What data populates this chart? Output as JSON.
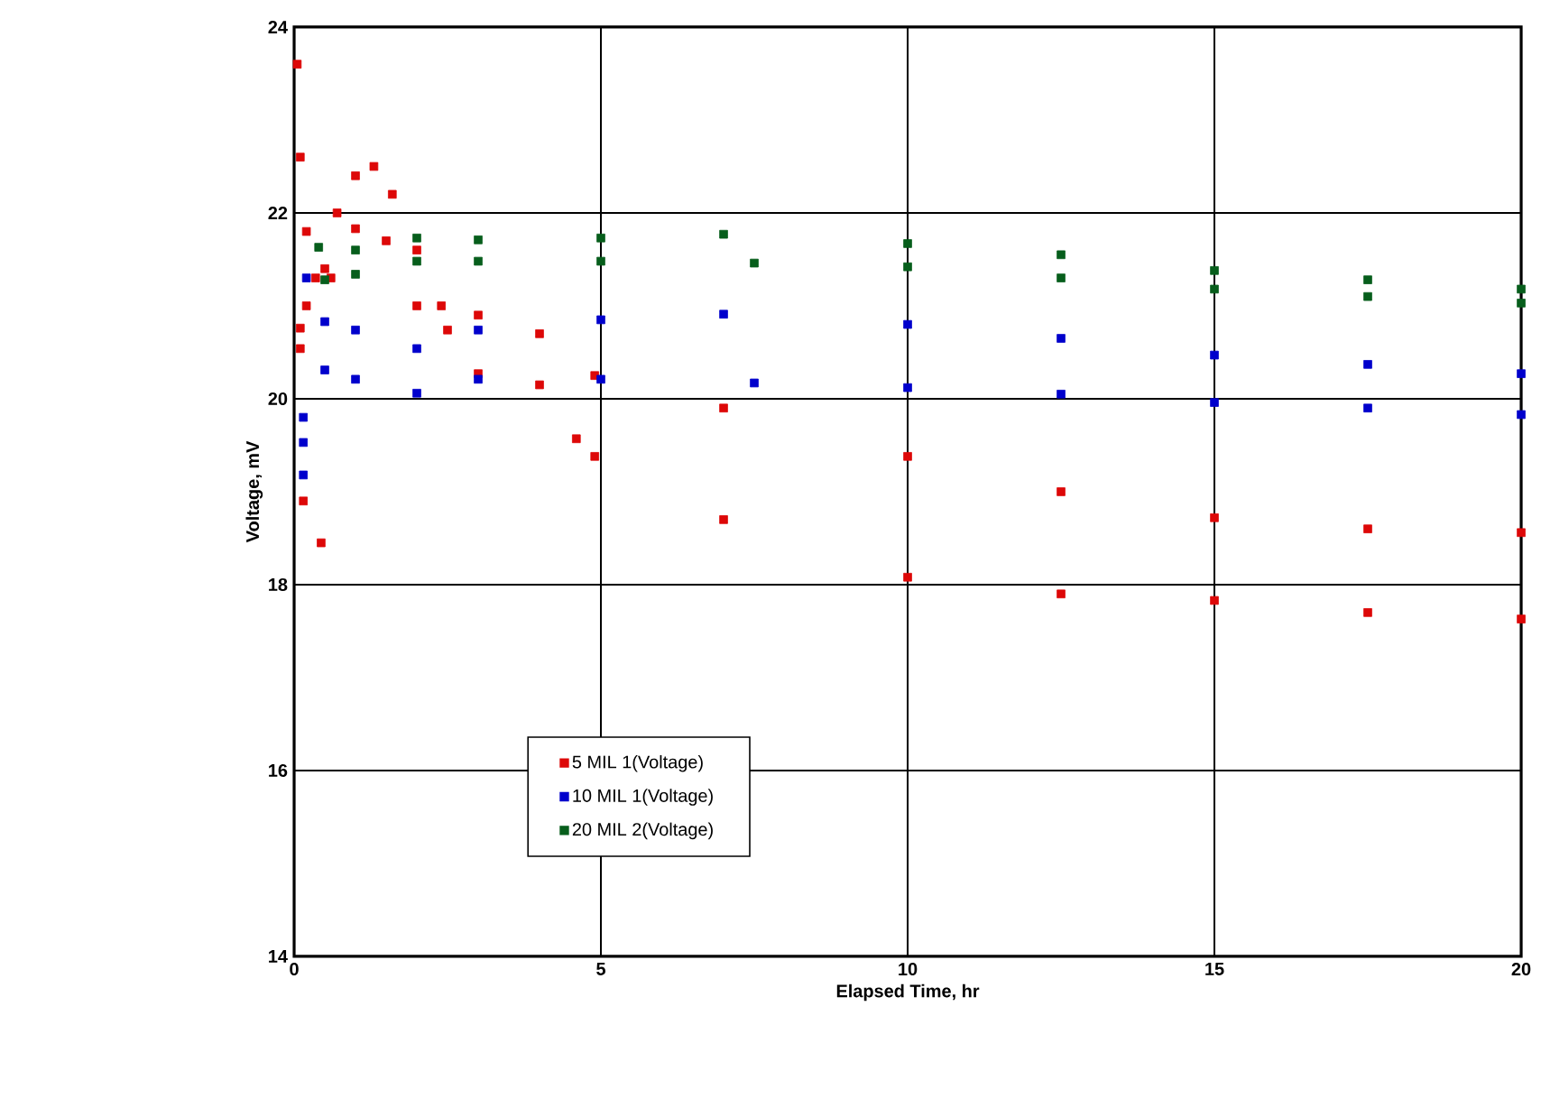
{
  "chart_data": {
    "type": "scatter",
    "xlabel": "Elapsed Time, hr",
    "ylabel": "Voltage, mV",
    "xlim": [
      0,
      20
    ],
    "ylim": [
      14,
      24
    ],
    "xticks": [
      0,
      5,
      10,
      15,
      20
    ],
    "yticks": [
      14,
      16,
      18,
      20,
      22,
      24
    ],
    "grid": true,
    "legend": "bottom left",
    "marker": "square",
    "series": [
      {
        "name": "5 MIL 1(Voltage)",
        "color": "#dd0808",
        "x": [
          0.05,
          0.1,
          0.2,
          0.35,
          0.5,
          0.7,
          1.0,
          1.3,
          1.6,
          2.0,
          2.4,
          3.0,
          4.0,
          4.9,
          7.0,
          10.0,
          12.5,
          15.0,
          17.5,
          20.0,
          0.2,
          0.6,
          1.0,
          1.5,
          2.0,
          2.5,
          3.0,
          4.0,
          4.6,
          4.9,
          7.0,
          10.0,
          12.5,
          15.0,
          17.5,
          20.0,
          0.1,
          0.1,
          0.15,
          0.44
        ],
        "values": [
          23.6,
          22.6,
          21.8,
          21.3,
          21.4,
          22.0,
          22.4,
          22.5,
          22.2,
          21.6,
          21.0,
          20.9,
          20.7,
          20.25,
          19.9,
          19.38,
          19.0,
          18.72,
          18.6,
          18.56,
          21.0,
          21.3,
          21.83,
          21.7,
          21.0,
          20.74,
          20.27,
          20.15,
          19.57,
          19.38,
          18.7,
          18.08,
          17.9,
          17.83,
          17.7,
          17.63,
          20.76,
          20.54,
          18.9,
          18.45
        ]
      },
      {
        "name": "10 MIL 1(Voltage)",
        "color": "#0000cc",
        "x": [
          0.2,
          0.5,
          1.0,
          2.0,
          3.0,
          5.0,
          7.0,
          10.0,
          12.5,
          15.0,
          17.5,
          20.0,
          0.5,
          1.0,
          2.0,
          3.0,
          5.0,
          7.5,
          10.0,
          12.5,
          15.0,
          17.5,
          20.0,
          0.15,
          0.15,
          0.15
        ],
        "values": [
          21.3,
          20.83,
          20.74,
          20.54,
          20.74,
          20.85,
          20.91,
          20.8,
          20.65,
          20.47,
          20.37,
          20.27,
          20.31,
          20.21,
          20.06,
          20.21,
          20.21,
          20.17,
          20.12,
          20.05,
          19.96,
          19.9,
          19.83,
          19.8,
          19.53,
          19.18
        ]
      },
      {
        "name": "20 MIL 2(Voltage)",
        "color": "#075e1c",
        "x": [
          0.4,
          1.0,
          2.0,
          3.0,
          5.0,
          7.0,
          10.0,
          12.5,
          15.0,
          17.5,
          20.0,
          0.5,
          1.0,
          2.0,
          3.0,
          5.0,
          7.5,
          10.0,
          12.5,
          15.0,
          17.5,
          20.0
        ],
        "values": [
          21.63,
          21.6,
          21.73,
          21.71,
          21.73,
          21.77,
          21.67,
          21.55,
          21.38,
          21.28,
          21.18,
          21.28,
          21.34,
          21.48,
          21.48,
          21.48,
          21.46,
          21.42,
          21.3,
          21.18,
          21.1,
          21.03
        ]
      }
    ]
  }
}
